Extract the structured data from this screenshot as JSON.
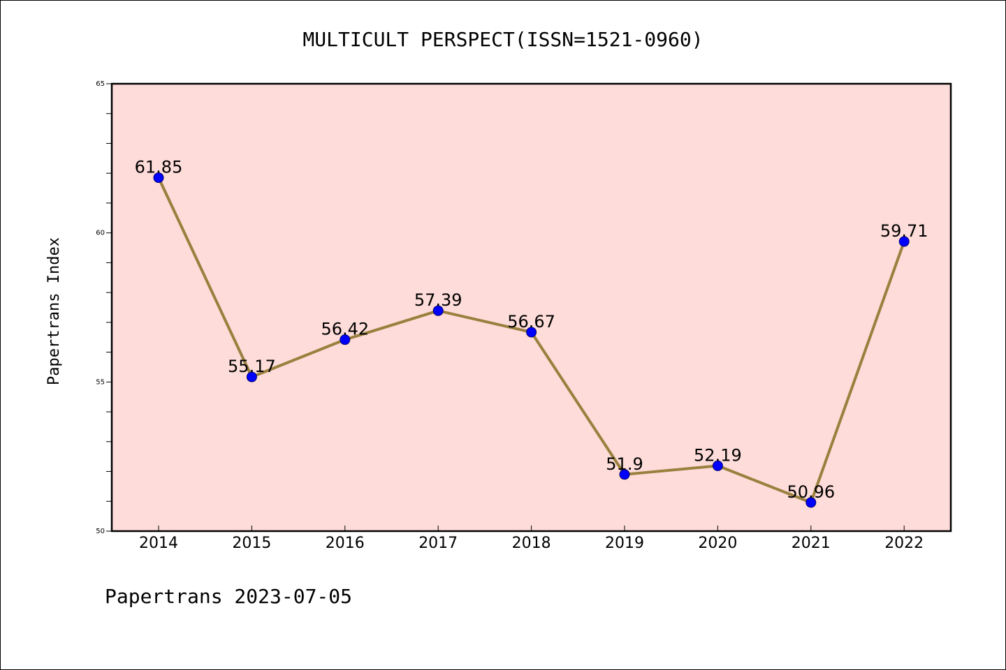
{
  "chart_data": {
    "type": "line",
    "title": "MULTICULT PERSPECT(ISSN=1521-0960)",
    "xlabel": "",
    "ylabel": "Papertrans Index",
    "x": [
      "2014",
      "2015",
      "2016",
      "2017",
      "2018",
      "2019",
      "2020",
      "2021",
      "2022"
    ],
    "series": [
      {
        "values": [
          61.85,
          55.17,
          56.42,
          57.39,
          56.67,
          51.9,
          52.19,
          50.96,
          59.71
        ],
        "data_labels": [
          "61.85",
          "55.17",
          "56.42",
          "57.39",
          "56.67",
          "51.9",
          "52.19",
          "50.96",
          "59.71"
        ]
      }
    ],
    "ylim": [
      50,
      65
    ],
    "y_ticks": [
      "50",
      "55",
      "60",
      "65"
    ],
    "grid": false,
    "legend": "none",
    "colors": {
      "plot_background": "#fddcd9",
      "line": "#9a803e",
      "marker": "#0000ff"
    },
    "footer": "Papertrans 2023-07-05"
  }
}
